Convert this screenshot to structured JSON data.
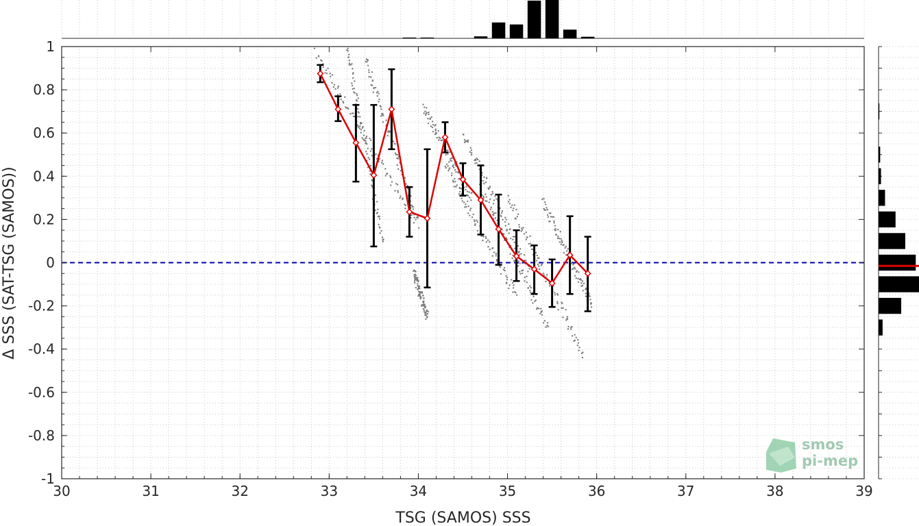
{
  "chart_data": {
    "type": "scatter",
    "title": "",
    "xlabel": "TSG (SAMOS) SSS",
    "ylabel": "Δ SSS (SAT-TSG (SAMOS))",
    "xlim": [
      30,
      39
    ],
    "ylim": [
      -1,
      1
    ],
    "xticks": [
      "30",
      "31",
      "32",
      "33",
      "34",
      "35",
      "36",
      "37",
      "38",
      "39"
    ],
    "yticks": [
      "1",
      "0.8",
      "0.6",
      "0.4",
      "0.2",
      "0",
      "-0.2",
      "-0.4",
      "-0.6",
      "-0.8",
      "-1"
    ],
    "grid": true,
    "reference_line": {
      "y": 0,
      "style": "dashed",
      "color": "#0000aa"
    },
    "binned_mean": {
      "color": "#dd0000",
      "x": [
        32.9,
        33.1,
        33.3,
        33.5,
        33.7,
        33.9,
        34.1,
        34.3,
        34.5,
        34.7,
        34.9,
        35.1,
        35.3,
        35.5,
        35.7,
        35.9
      ],
      "y": [
        0.875,
        0.71,
        0.555,
        0.405,
        0.71,
        0.235,
        0.205,
        0.58,
        0.385,
        0.29,
        0.155,
        0.03,
        -0.03,
        -0.095,
        0.035,
        -0.05
      ],
      "err_low": [
        0.835,
        0.655,
        0.375,
        0.075,
        0.525,
        0.12,
        -0.115,
        0.51,
        0.31,
        0.13,
        -0.01,
        -0.085,
        -0.145,
        -0.205,
        -0.145,
        -0.225
      ],
      "err_high": [
        0.915,
        0.77,
        0.73,
        0.73,
        0.895,
        0.35,
        0.525,
        0.65,
        0.46,
        0.45,
        0.315,
        0.15,
        0.08,
        0.015,
        0.215,
        0.12
      ]
    },
    "scatter_tracks": [
      {
        "x0": 32.85,
        "y0": 0.97,
        "x1": 33.95,
        "y1": 0.2
      },
      {
        "x0": 33.2,
        "y0": 1.0,
        "x1": 33.6,
        "y1": 0.1
      },
      {
        "x0": 33.4,
        "y0": 0.95,
        "x1": 34.0,
        "y1": 0.18
      },
      {
        "x0": 34.05,
        "y0": 0.72,
        "x1": 34.6,
        "y1": 0.3
      },
      {
        "x0": 34.3,
        "y0": 0.45,
        "x1": 35.1,
        "y1": -0.15
      },
      {
        "x0": 34.5,
        "y0": 0.6,
        "x1": 35.25,
        "y1": -0.05
      },
      {
        "x0": 34.7,
        "y0": 0.35,
        "x1": 35.45,
        "y1": -0.3
      },
      {
        "x0": 35.0,
        "y0": 0.3,
        "x1": 35.85,
        "y1": -0.42
      },
      {
        "x0": 35.4,
        "y0": 0.28,
        "x1": 35.95,
        "y1": -0.2
      },
      {
        "x0": 33.95,
        "y0": -0.05,
        "x1": 34.1,
        "y1": -0.25
      }
    ],
    "histogram_x": {
      "bins": [
        33.9,
        34.1,
        34.7,
        34.9,
        35.1,
        35.3,
        35.5,
        35.7,
        35.9
      ],
      "values": [
        0.02,
        0.02,
        0.05,
        0.4,
        0.35,
        0.95,
        1.0,
        0.22,
        0.04
      ]
    },
    "histogram_y": {
      "bins": [
        0.7,
        0.5,
        0.4,
        0.3,
        0.2,
        0.1,
        0.0,
        -0.1,
        -0.2,
        -0.3
      ],
      "values": [
        0.02,
        0.04,
        0.06,
        0.16,
        0.42,
        0.66,
        0.92,
        1.0,
        0.56,
        0.1
      ],
      "median": -0.015
    }
  },
  "logo": {
    "line1": "smos",
    "line2": "pi-mep"
  }
}
